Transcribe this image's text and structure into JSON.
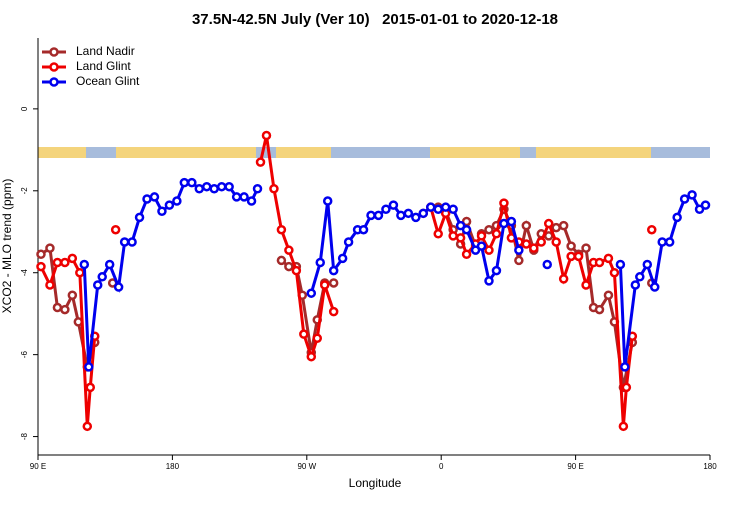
{
  "chart_data": {
    "type": "line",
    "title": "37.5N-42.5N July (Ver 10)   2015-01-01 to 2020-12-18",
    "xlabel": "Longitude",
    "ylabel": "XCO2 - MLO trend (ppm)",
    "xlim": [
      90,
      540
    ],
    "xticks": [
      {
        "value": 90,
        "label": "90 E"
      },
      180,
      {
        "value": 270,
        "label": "90 W"
      },
      {
        "value": 360,
        "label": "0"
      },
      {
        "value": 450,
        "label": "90 E"
      },
      {
        "value": 540,
        "label": "180"
      }
    ],
    "ylim": [
      -8.45,
      1.73
    ],
    "yticks": [
      0,
      -2,
      -4,
      -6,
      -8
    ],
    "legend": "top-left",
    "series": [
      {
        "name": "Land Nadir",
        "color": "#a52a2a",
        "x": [
          92,
          98,
          103,
          108,
          113,
          117,
          123,
          128,
          null,
          140,
          null,
          253,
          258,
          263,
          267,
          273,
          277,
          282,
          288,
          null,
          348,
          null,
          358,
          363,
          368,
          373,
          377,
          383,
          387,
          392,
          397,
          402,
          407,
          412,
          417,
          422,
          427,
          432,
          437,
          442,
          447,
          452,
          457,
          462,
          466,
          472,
          476,
          482,
          488,
          null,
          501
        ],
        "values": [
          -3.55,
          -3.4,
          -4.85,
          -4.9,
          -4.55,
          -5.2,
          -6.3,
          -5.7,
          null,
          -4.25,
          null,
          -3.7,
          -3.85,
          -3.85,
          -4.55,
          -5.95,
          -5.15,
          -4.25,
          -4.25,
          null,
          -2.55,
          null,
          -2.4,
          -2.5,
          -2.95,
          -3.3,
          -2.75,
          -3.35,
          -3.05,
          -2.95,
          -2.85,
          -2.45,
          -2.85,
          -3.7,
          -2.85,
          -3.45,
          -3.05,
          -3.1,
          -2.9,
          -2.85,
          -3.35,
          -3.55,
          -3.4,
          -4.85,
          -4.9,
          -4.55,
          -5.2,
          -6.8,
          -5.7,
          null,
          -4.25
        ]
      },
      {
        "name": "Land Glint",
        "color": "#ee0000",
        "x": [
          92,
          98,
          103,
          108,
          113,
          118,
          123,
          125,
          128,
          null,
          142,
          null,
          239,
          243,
          248,
          253,
          258,
          263,
          268,
          273,
          277,
          282,
          288,
          null,
          353,
          358,
          363,
          368,
          373,
          377,
          383,
          387,
          392,
          397,
          402,
          407,
          412,
          417,
          422,
          427,
          432,
          437,
          442,
          447,
          452,
          457,
          462,
          466,
          472,
          476,
          482,
          484,
          488,
          null,
          501
        ],
        "values": [
          -3.85,
          -4.3,
          -3.75,
          -3.75,
          -3.65,
          -4.0,
          -7.75,
          -6.8,
          -5.55,
          null,
          -2.95,
          null,
          -1.3,
          -0.65,
          -1.95,
          -2.95,
          -3.45,
          -3.95,
          -5.5,
          -6.05,
          -5.6,
          -4.3,
          -4.95,
          null,
          -2.4,
          -3.05,
          -2.55,
          -3.1,
          -3.15,
          -3.55,
          -3.3,
          -3.1,
          -3.45,
          -3.05,
          -2.3,
          -3.15,
          -3.25,
          -3.3,
          -3.4,
          -3.25,
          -2.8,
          -3.25,
          -4.15,
          -3.6,
          -3.6,
          -4.3,
          -3.75,
          -3.75,
          -3.65,
          -4.0,
          -7.75,
          -6.8,
          -5.55,
          null,
          -2.95
        ]
      },
      {
        "name": "Ocean Glint",
        "color": "#0000ee",
        "x": [
          121,
          124,
          130,
          133,
          138,
          144,
          148,
          153,
          158,
          163,
          168,
          173,
          178,
          183,
          188,
          193,
          198,
          203,
          208,
          213,
          218,
          223,
          228,
          233,
          237,
          null,
          273,
          279,
          284,
          288,
          294,
          298,
          304,
          308,
          313,
          318,
          323,
          328,
          333,
          338,
          343,
          348,
          353,
          358,
          363,
          368,
          373,
          377,
          383,
          387,
          392,
          397,
          402,
          407,
          412,
          null,
          431,
          null,
          480,
          483,
          490,
          493,
          498,
          503,
          508,
          513,
          518,
          523,
          528,
          533,
          537
        ],
        "values": [
          -3.8,
          -6.3,
          -4.3,
          -4.1,
          -3.8,
          -4.35,
          -3.25,
          -3.25,
          -2.65,
          -2.2,
          -2.15,
          -2.5,
          -2.35,
          -2.25,
          -1.8,
          -1.8,
          -1.95,
          -1.9,
          -1.95,
          -1.9,
          -1.9,
          -2.15,
          -2.15,
          -2.25,
          -1.95,
          null,
          -4.5,
          -3.75,
          -2.25,
          -3.95,
          -3.65,
          -3.25,
          -2.95,
          -2.95,
          -2.6,
          -2.6,
          -2.45,
          -2.35,
          -2.6,
          -2.55,
          -2.65,
          -2.55,
          -2.4,
          -2.45,
          -2.4,
          -2.45,
          -2.85,
          -2.95,
          -3.45,
          -3.35,
          -4.2,
          -3.95,
          -2.8,
          -2.75,
          -3.45,
          null,
          -3.8,
          null,
          -3.8,
          -6.3,
          -4.3,
          -4.1,
          -3.8,
          -4.35,
          -3.25,
          -3.25,
          -2.65,
          -2.2,
          -2.1,
          -2.45,
          -2.35
        ]
      }
    ]
  }
}
